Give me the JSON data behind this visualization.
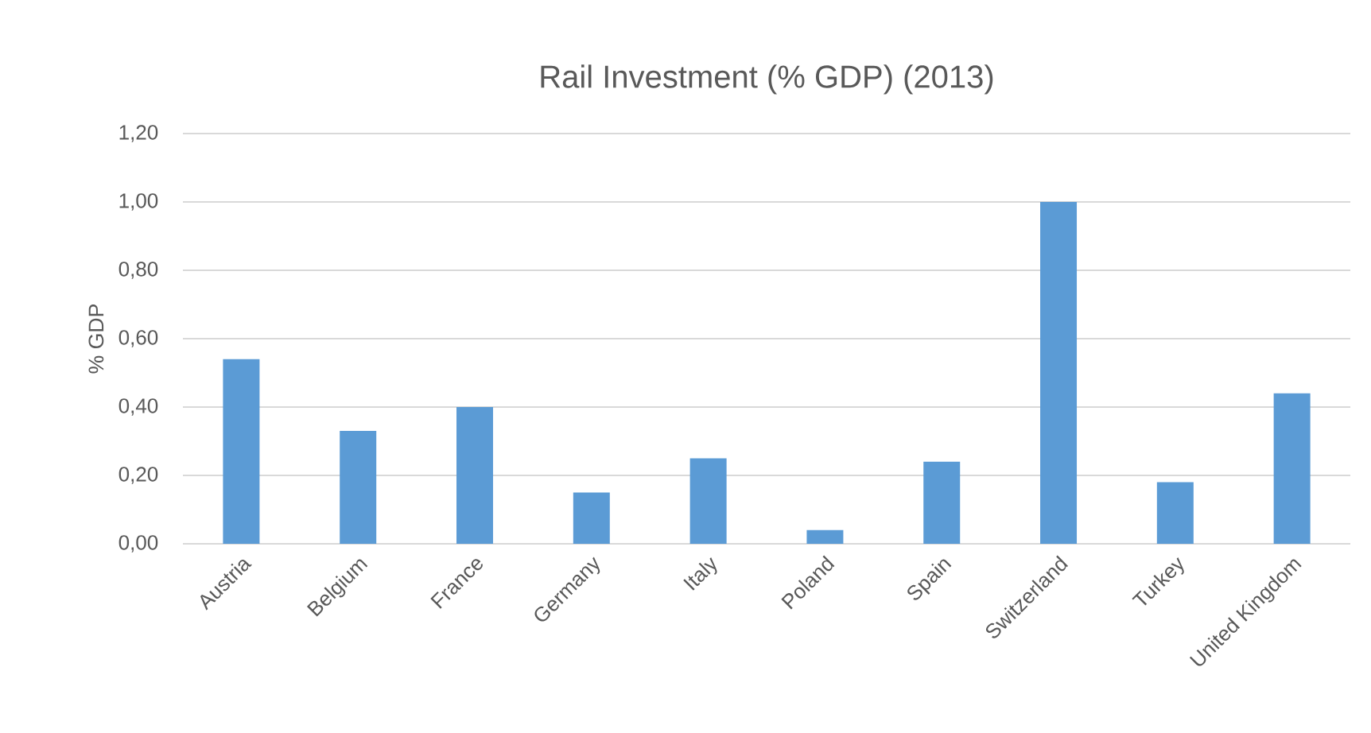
{
  "chart_data": {
    "type": "bar",
    "title": "Rail Investment (% GDP) (2013)",
    "ylabel": "% GDP",
    "categories": [
      "Austria",
      "Belgium",
      "France",
      "Germany",
      "Italy",
      "Poland",
      "Spain",
      "Switzerland",
      "Turkey",
      "United Kingdom"
    ],
    "values": [
      0.54,
      0.33,
      0.4,
      0.15,
      0.25,
      0.04,
      0.24,
      1.0,
      0.18,
      0.44
    ],
    "color": "#5b9bd5",
    "ylim": [
      0,
      1.2
    ],
    "yticks": [
      {
        "value": 0,
        "label": "0,00"
      },
      {
        "value": 0.2,
        "label": "0,20"
      },
      {
        "value": 0.4,
        "label": "0,40"
      },
      {
        "value": 0.6,
        "label": "0,60"
      },
      {
        "value": 0.8,
        "label": "0,80"
      },
      {
        "value": 1.0,
        "label": "1,00"
      },
      {
        "value": 1.2,
        "label": "1,20"
      }
    ],
    "grid": "y"
  }
}
